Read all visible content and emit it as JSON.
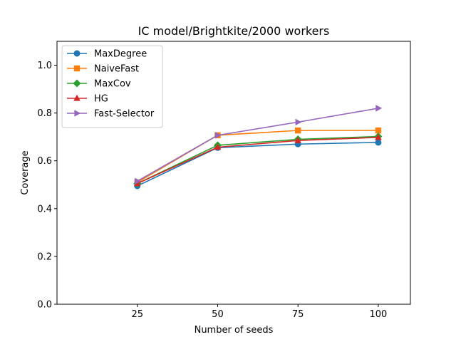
{
  "chart_data": {
    "type": "line",
    "title": "IC model/Brightkite/2000 workers",
    "xlabel": "Number of seeds",
    "ylabel": "Coverage",
    "xlim": [
      0,
      110
    ],
    "ylim": [
      0.0,
      1.1
    ],
    "x": [
      25,
      50,
      75,
      100
    ],
    "xticks": [
      25,
      50,
      75,
      100
    ],
    "yticks": [
      0.0,
      0.2,
      0.4,
      0.6,
      0.8,
      1.0
    ],
    "xtick_labels": [
      "25",
      "50",
      "75",
      "100"
    ],
    "ytick_labels": [
      "0.0",
      "0.2",
      "0.4",
      "0.6",
      "0.8",
      "1.0"
    ],
    "grid": false,
    "legend_position": "top-left",
    "series": [
      {
        "name": "MaxDegree",
        "marker": "circle",
        "color": "#1f77b4",
        "values": [
          0.495,
          0.655,
          0.67,
          0.677
        ]
      },
      {
        "name": "NaiveFast",
        "marker": "square",
        "color": "#ff7f0e",
        "values": [
          0.51,
          0.707,
          0.727,
          0.727
        ]
      },
      {
        "name": "MaxCov",
        "marker": "diamond",
        "color": "#2ca02c",
        "values": [
          0.505,
          0.665,
          0.69,
          0.702
        ]
      },
      {
        "name": "HG",
        "marker": "triangle-up",
        "color": "#d62728",
        "values": [
          0.505,
          0.657,
          0.685,
          0.698
        ]
      },
      {
        "name": "Fast-Selector",
        "marker": "triangle-right",
        "color": "#9467bd",
        "values": [
          0.515,
          0.707,
          0.762,
          0.82
        ]
      }
    ]
  }
}
